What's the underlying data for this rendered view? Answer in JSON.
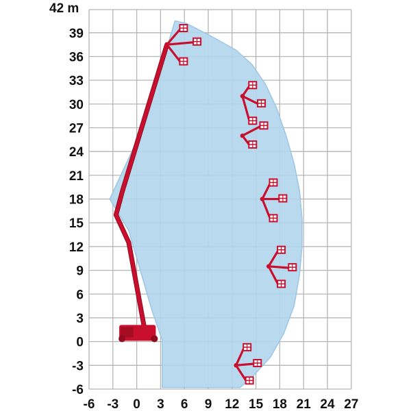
{
  "diagram": {
    "unit_label": "42 m",
    "x_ticks": [
      "-6",
      "-3",
      "0",
      "3",
      "6",
      "9",
      "12",
      "15",
      "18",
      "21",
      "24",
      "27"
    ],
    "y_ticks": [
      "39",
      "36",
      "33",
      "30",
      "27",
      "24",
      "21",
      "18",
      "15",
      "12",
      "9",
      "6",
      "3",
      "0",
      "-3",
      "-6"
    ],
    "x_range": [
      -6,
      27
    ],
    "y_range": [
      -6,
      42
    ],
    "grid": true,
    "colors": {
      "envelope": "#b3d6ee",
      "envelope_edge": "#9cc6e4",
      "grid": "#b5b5b5",
      "machine": "#c8102e",
      "machine_dark": "#8e0b20",
      "text": "#111111"
    },
    "reach_envelope": [
      [
        4.8,
        40.5
      ],
      [
        6.2,
        40.2
      ],
      [
        9.5,
        38.5
      ],
      [
        12.5,
        36.8
      ],
      [
        14.5,
        35.0
      ],
      [
        16.2,
        32.5
      ],
      [
        17.6,
        29.5
      ],
      [
        18.8,
        26.0
      ],
      [
        19.8,
        22.5
      ],
      [
        20.5,
        19.0
      ],
      [
        20.8,
        15.5
      ],
      [
        20.8,
        12.0
      ],
      [
        20.5,
        8.5
      ],
      [
        19.8,
        4.5
      ],
      [
        18.5,
        1.0
      ],
      [
        16.8,
        -2.0
      ],
      [
        14.5,
        -4.5
      ],
      [
        13.0,
        -5.8
      ],
      [
        3.2,
        -5.8
      ],
      [
        3.2,
        0.2
      ],
      [
        1.9,
        4.0
      ],
      [
        -1.0,
        14.0
      ],
      [
        -3.4,
        18.0
      ],
      [
        1.0,
        27.5
      ],
      [
        4.8,
        40.5
      ]
    ],
    "main_boom": [
      [
        1.0,
        1.5
      ],
      [
        -1.0,
        12.5
      ],
      [
        -2.6,
        16.0
      ],
      [
        -1.8,
        19.0
      ],
      [
        3.8,
        37.5
      ]
    ],
    "jib_positions": [
      {
        "base": [
          3.8,
          37.5
        ],
        "tips": [
          [
            5.5,
            39.5
          ],
          [
            7.2,
            37.8
          ],
          [
            5.5,
            35.3
          ]
        ]
      },
      {
        "base": [
          13.3,
          31.0
        ],
        "tips": [
          [
            14.2,
            32.3
          ],
          [
            15.3,
            30.0
          ],
          [
            14.2,
            27.8
          ]
        ]
      },
      {
        "base": [
          13.3,
          26.0
        ],
        "tips": [
          [
            15.6,
            27.2
          ],
          [
            14.2,
            24.8
          ]
        ]
      },
      {
        "base": [
          15.8,
          18.0
        ],
        "tips": [
          [
            16.8,
            20.0
          ],
          [
            18.0,
            18.0
          ],
          [
            16.8,
            15.5
          ]
        ]
      },
      {
        "base": [
          16.6,
          9.5
        ],
        "tips": [
          [
            17.8,
            11.5
          ],
          [
            19.2,
            9.3
          ],
          [
            17.8,
            7.2
          ]
        ]
      },
      {
        "base": [
          12.5,
          -3.0
        ],
        "tips": [
          [
            13.5,
            -0.8
          ],
          [
            14.8,
            -2.8
          ],
          [
            13.8,
            -5.0
          ]
        ]
      }
    ],
    "chassis": {
      "x": [
        -2.2,
        2.4
      ],
      "y": [
        0.1,
        2.1
      ]
    }
  }
}
